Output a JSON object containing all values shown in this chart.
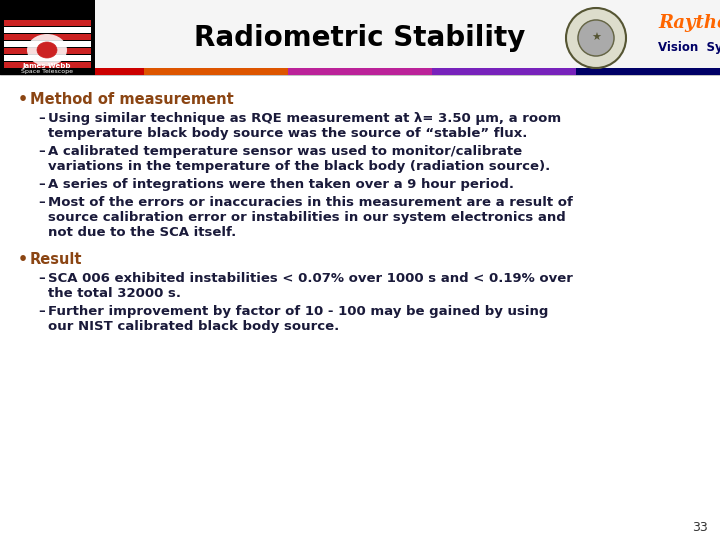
{
  "title": "Radiometric Stability",
  "title_fontsize": 20,
  "title_color": "#000000",
  "background_color": "#ffffff",
  "bullet_color": "#8B4513",
  "bullet_items": [
    {
      "label": "Method of measurement",
      "color": "#8B4513",
      "subitems": [
        "Using similar technique as RQE measurement at λ= 3.50 μm, a room\ntemperature black body source was the source of “stable” flux.",
        "A calibrated temperature sensor was used to monitor/calibrate\nvariations in the temperature of the black body (radiation source).",
        "A series of integrations were then taken over a 9 hour period.",
        "Most of the errors or inaccuracies in this measurement are a result of\nsource calibration error or instabilities in our system electronics and\nnot due to the SCA itself."
      ]
    },
    {
      "label": "Result",
      "color": "#8B4513",
      "subitems": [
        "SCA 006 exhibited instabilities < 0.07% over 1000 s and < 0.19% over\nthe total 32000 s.",
        "Further improvement by factor of 10 - 100 may be gained by using\nour NIST calibrated black body source."
      ]
    }
  ],
  "page_number": "33",
  "text_color": "#1a1a3a",
  "subitem_fontsize": 9.5,
  "bullet_fontsize": 10.5,
  "bar_colors": [
    "#cc0000",
    "#dd4400",
    "#cc2299",
    "#6600bb",
    "#000066"
  ],
  "raytheon_color": "#ff6600",
  "vision_color": "#000066"
}
